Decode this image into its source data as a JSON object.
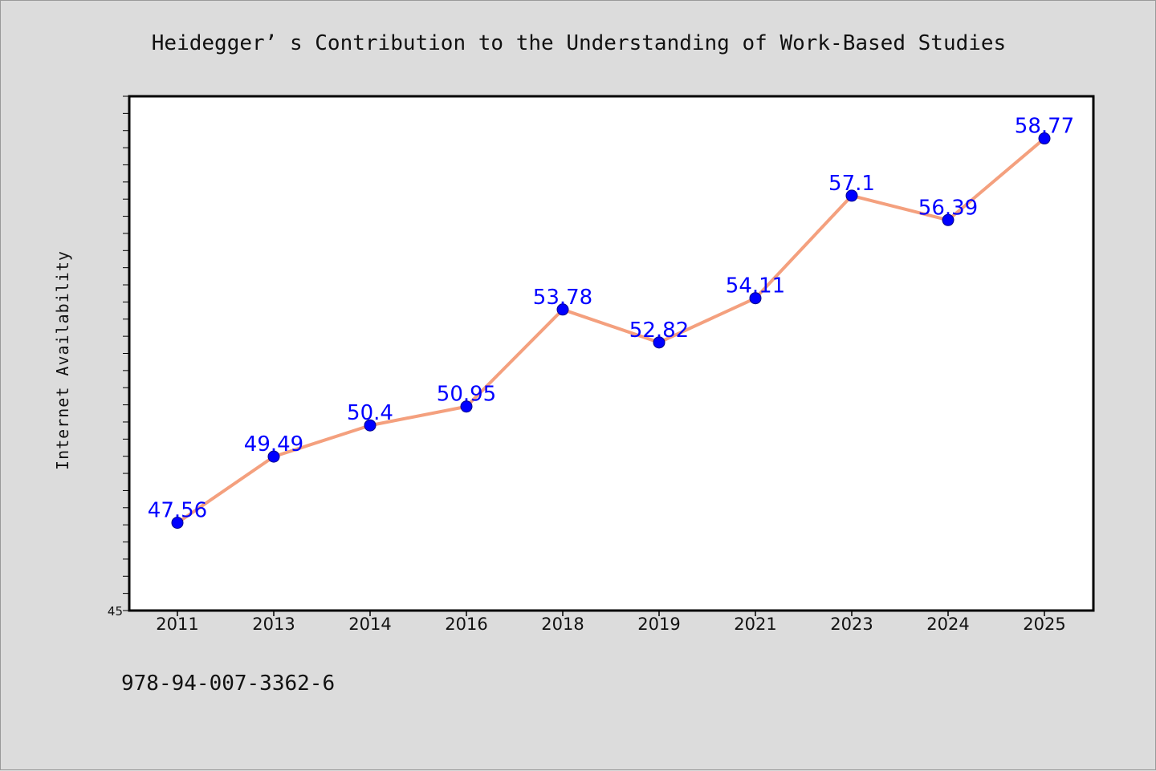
{
  "chart_data": {
    "type": "line",
    "title": "Heidegger’ s Contribution to the Understanding of Work-Based Studies",
    "xlabel": "",
    "ylabel": "Internet Availability",
    "categories": [
      "2011",
      "2013",
      "2014",
      "2016",
      "2018",
      "2019",
      "2021",
      "2023",
      "2024",
      "2025"
    ],
    "series": [
      {
        "values": [
          47.56,
          49.49,
          50.4,
          50.95,
          53.78,
          52.82,
          54.11,
          57.1,
          56.39,
          58.77
        ],
        "labels": [
          "47.56",
          "49.49",
          "50.4",
          "50.95",
          "53.78",
          "52.82",
          "54.11",
          "57.1",
          "56.39",
          "58.77"
        ],
        "line_color": "#f4a07e",
        "marker_color": "#0000ff",
        "label_color": "#0000ff"
      }
    ],
    "ylim": [
      45,
      60
    ],
    "y_tick_labels": [
      "45"
    ],
    "grid": false,
    "legend": "none"
  },
  "footer": {
    "isbn": "978-94-007-3362-6"
  }
}
